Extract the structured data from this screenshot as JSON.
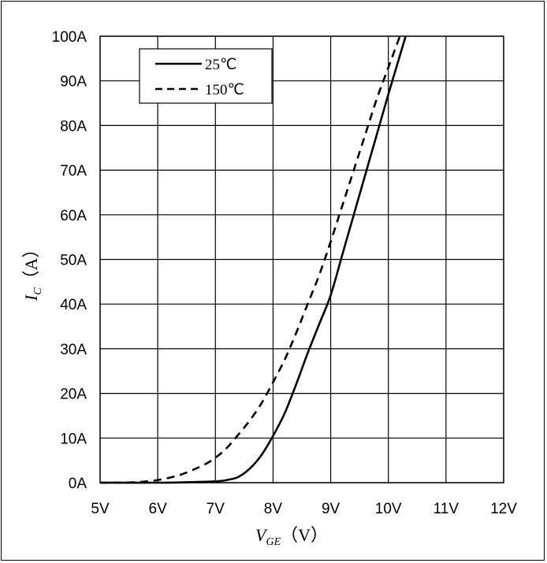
{
  "chart_data": {
    "type": "line",
    "title": "",
    "xlabel": {
      "symbol": "V",
      "subscript": "GE",
      "unit": "（V）"
    },
    "ylabel": {
      "symbol": "I",
      "subscript": "C",
      "unit": "（A）"
    },
    "xlim": [
      5,
      12
    ],
    "ylim": [
      0,
      100
    ],
    "x_ticks": [
      5,
      6,
      7,
      8,
      9,
      10,
      11,
      12
    ],
    "x_tick_labels": [
      "5V",
      "6V",
      "7V",
      "8V",
      "9V",
      "10V",
      "11V",
      "12V"
    ],
    "y_ticks": [
      0,
      10,
      20,
      30,
      40,
      50,
      60,
      70,
      80,
      90,
      100
    ],
    "y_tick_labels": [
      "0A",
      "10A",
      "20A",
      "30A",
      "40A",
      "50A",
      "60A",
      "70A",
      "80A",
      "90A",
      "100A"
    ],
    "grid": true,
    "legend_position": "top-left",
    "series": [
      {
        "name": "25℃",
        "style": "solid",
        "color": "#000000",
        "x": [
          5.0,
          6.0,
          6.5,
          7.0,
          7.2,
          7.4,
          7.6,
          7.8,
          8.0,
          8.2,
          8.4,
          8.6,
          8.8,
          9.0,
          9.2,
          9.4,
          9.6,
          9.8,
          10.0,
          10.15,
          10.3
        ],
        "y": [
          0,
          0,
          0.1,
          0.3,
          0.6,
          1.3,
          3.2,
          6.2,
          10.5,
          15.5,
          22,
          29,
          35.5,
          42,
          51,
          60,
          69,
          78,
          87,
          93.5,
          100
        ]
      },
      {
        "name": "150℃",
        "style": "dashed",
        "color": "#000000",
        "x": [
          5.0,
          5.6,
          6.0,
          6.4,
          6.8,
          7.0,
          7.2,
          7.4,
          7.6,
          7.8,
          8.0,
          8.2,
          8.4,
          8.6,
          8.8,
          9.0,
          9.2,
          9.4,
          9.6,
          9.8,
          10.0,
          10.2
        ],
        "y": [
          0,
          0.1,
          0.6,
          1.8,
          4.0,
          5.6,
          7.8,
          10.8,
          14.0,
          17.8,
          22.5,
          27.5,
          33.5,
          40.0,
          46.5,
          54.0,
          62.0,
          70.0,
          78.0,
          86.0,
          93.0,
          100
        ]
      }
    ]
  }
}
